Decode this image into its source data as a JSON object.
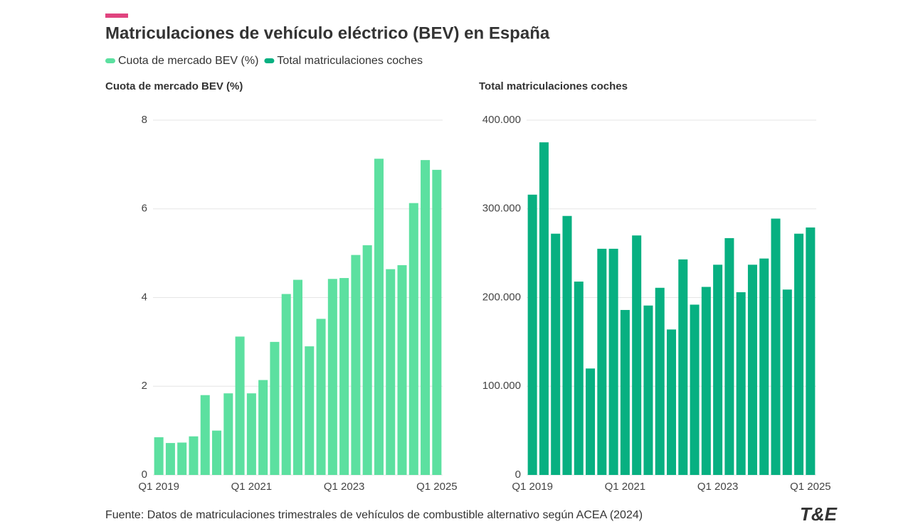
{
  "title": "Matriculaciones de vehículo eléctrico (BEV) en España",
  "source": "Fuente: Datos de matriculaciones trimestrales de vehículos de combustible alternativo según ACEA (2024)",
  "logo": "T&E",
  "chart_data": [
    {
      "type": "bar",
      "title": "Cuota de mercado BEV (%)",
      "categories": [
        "Q1 2019",
        null,
        null,
        null,
        null,
        null,
        null,
        null,
        "Q1 2021",
        null,
        null,
        null,
        null,
        null,
        null,
        null,
        "Q1 2023",
        null,
        null,
        null,
        null,
        null,
        null,
        null,
        "Q1 2025"
      ],
      "series": [
        {
          "name": "Cuota de mercado BEV (%)",
          "color": "#5ce0a0",
          "values": [
            0.85,
            0.72,
            0.73,
            0.87,
            1.8,
            1.0,
            1.84,
            3.12,
            1.84,
            2.14,
            3.0,
            4.08,
            4.4,
            2.9,
            3.52,
            4.42,
            4.44,
            4.96,
            5.18,
            7.13,
            4.64,
            4.73,
            6.13,
            7.1,
            6.88
          ]
        }
      ],
      "ylim": [
        0,
        8
      ],
      "yticks": [
        0,
        2,
        4,
        6,
        8
      ],
      "grid": true
    },
    {
      "type": "bar",
      "title": "Total matriculaciones coches",
      "categories": [
        "Q1 2019",
        null,
        null,
        null,
        null,
        null,
        null,
        null,
        "Q1 2021",
        null,
        null,
        null,
        null,
        null,
        null,
        null,
        "Q1 2023",
        null,
        null,
        null,
        null,
        null,
        null,
        null,
        "Q1 2025"
      ],
      "series": [
        {
          "name": "Total matriculaciones coches",
          "color": "#07b081",
          "values": [
            316000,
            375000,
            272000,
            292000,
            218000,
            120000,
            255000,
            255000,
            186000,
            270000,
            191000,
            211000,
            164000,
            243000,
            192000,
            212000,
            237000,
            267000,
            206000,
            237000,
            244000,
            289000,
            209000,
            272000,
            279000
          ]
        }
      ],
      "ylim": [
        0,
        400000
      ],
      "yticks": [
        0,
        {
          "value": 100000,
          "label": "100.000"
        },
        {
          "value": 200000,
          "label": "200.000"
        },
        {
          "value": 300000,
          "label": "300.000"
        },
        {
          "value": 400000,
          "label": "400.000"
        }
      ],
      "grid": true
    }
  ]
}
